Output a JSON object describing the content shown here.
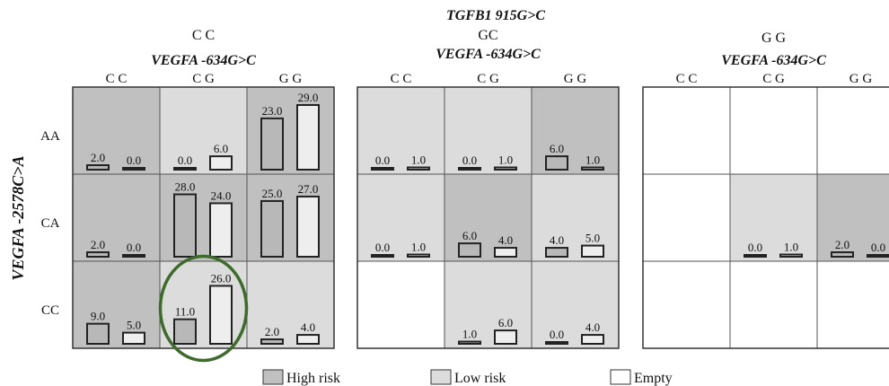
{
  "chart_data": {
    "type": "bar",
    "top_title": "TGFB1 915G>C",
    "ylabel": "VEGFA -2578C>A",
    "row_labels": [
      "AA",
      "CA",
      "CC"
    ],
    "col_labels": [
      "C C",
      "C G",
      "G G"
    ],
    "vmax": 29.0,
    "panels": [
      {
        "genotype": "C C",
        "xlabel": "VEGFA -634G>C",
        "cells": [
          [
            {
              "status": "high",
              "values": [
                "2.0",
                "0.0"
              ]
            },
            {
              "status": "low",
              "values": [
                "0.0",
                "6.0"
              ]
            },
            {
              "status": "high",
              "values": [
                "23.0",
                "29.0"
              ]
            }
          ],
          [
            {
              "status": "high",
              "values": [
                "2.0",
                "0.0"
              ]
            },
            {
              "status": "high",
              "values": [
                "28.0",
                "24.0"
              ]
            },
            {
              "status": "high",
              "values": [
                "25.0",
                "27.0"
              ]
            }
          ],
          [
            {
              "status": "high",
              "values": [
                "9.0",
                "5.0"
              ]
            },
            {
              "status": "low",
              "values": [
                "11.0",
                "26.0"
              ]
            },
            {
              "status": "low",
              "values": [
                "2.0",
                "4.0"
              ]
            }
          ]
        ]
      },
      {
        "genotype": "GC",
        "xlabel": "VEGFA -634G>C",
        "cells": [
          [
            {
              "status": "low",
              "values": [
                "0.0",
                "1.0"
              ]
            },
            {
              "status": "low",
              "values": [
                "0.0",
                "1.0"
              ]
            },
            {
              "status": "high",
              "values": [
                "6.0",
                "1.0"
              ]
            }
          ],
          [
            {
              "status": "low",
              "values": [
                "0.0",
                "1.0"
              ]
            },
            {
              "status": "high",
              "values": [
                "6.0",
                "4.0"
              ]
            },
            {
              "status": "low",
              "values": [
                "4.0",
                "5.0"
              ]
            }
          ],
          [
            {
              "status": "empty",
              "values": []
            },
            {
              "status": "low",
              "values": [
                "1.0",
                "6.0"
              ]
            },
            {
              "status": "low",
              "values": [
                "0.0",
                "4.0"
              ]
            }
          ]
        ]
      },
      {
        "genotype": "G G",
        "xlabel": "VEGFA -634G>C",
        "cells": [
          [
            {
              "status": "empty",
              "values": []
            },
            {
              "status": "empty",
              "values": []
            },
            {
              "status": "empty",
              "values": []
            }
          ],
          [
            {
              "status": "empty",
              "values": []
            },
            {
              "status": "low",
              "values": [
                "0.0",
                "1.0"
              ]
            },
            {
              "status": "high",
              "values": [
                "2.0",
                "0.0"
              ]
            }
          ],
          [
            {
              "status": "empty",
              "values": []
            },
            {
              "status": "empty",
              "values": []
            },
            {
              "status": "empty",
              "values": []
            }
          ]
        ]
      }
    ],
    "highlight": {
      "panel": 0,
      "row": 2,
      "col": 1,
      "color": "#3e6b2c"
    },
    "colors": {
      "high": "#c0c0c0",
      "low": "#dcdcdc",
      "empty": "#ffffff",
      "bar_case": "#b8b8b8",
      "bar_control": "#eeeeee",
      "outline": "#222222"
    },
    "legend": [
      {
        "key": "high",
        "label": "High risk"
      },
      {
        "key": "low",
        "label": "Low risk"
      },
      {
        "key": "empty",
        "label": "Empty"
      }
    ]
  }
}
